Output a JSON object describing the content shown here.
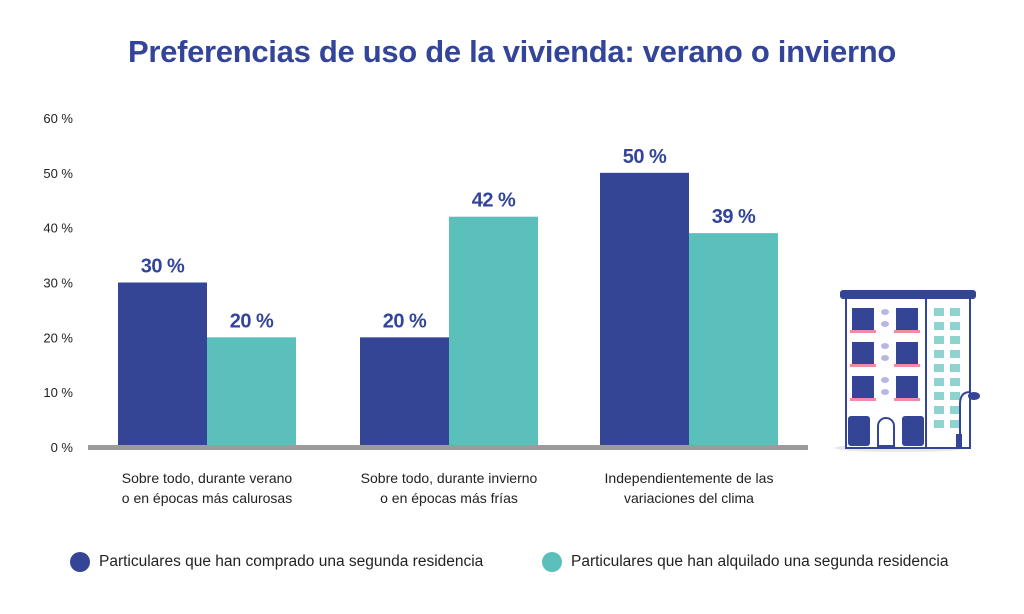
{
  "title": "Preferencias de uso de la vivienda: verano o invierno",
  "colors": {
    "series1": "#344595",
    "series2": "#5bbfbb",
    "title": "#33459a",
    "axis": "#9b9b9b"
  },
  "legend": [
    {
      "label": "Particulares que han comprado una segunda residencia",
      "color": "#344595"
    },
    {
      "label": "Particulares que han alquilado una segunda residencia",
      "color": "#5bbfbb"
    }
  ],
  "chart_data": {
    "type": "bar",
    "title": "Preferencias de uso de la vivienda: verano o invierno",
    "categories": [
      [
        "Sobre todo, durante verano",
        "o en épocas más calurosas"
      ],
      [
        "Sobre todo, durante invierno",
        "o en épocas más frías"
      ],
      [
        "Independientemente de las",
        "variaciones del clima"
      ]
    ],
    "series": [
      {
        "name": "Particulares que han comprado una segunda residencia",
        "values": [
          30,
          20,
          50
        ],
        "labels": [
          "30 %",
          "20 %",
          "50 %"
        ]
      },
      {
        "name": "Particulares que han alquilado una segunda residencia",
        "values": [
          20,
          42,
          39
        ],
        "labels": [
          "20 %",
          "42 %",
          "39 %"
        ]
      }
    ],
    "ylim": [
      0,
      60
    ],
    "yticks": [
      "0 %",
      "10 %",
      "20 %",
      "30 %",
      "40 %",
      "50 %",
      "60 %"
    ],
    "xlabel": "",
    "ylabel": "",
    "grid": false,
    "legend_position": "bottom"
  },
  "illustration": {
    "name": "apartment-building-illustration"
  }
}
